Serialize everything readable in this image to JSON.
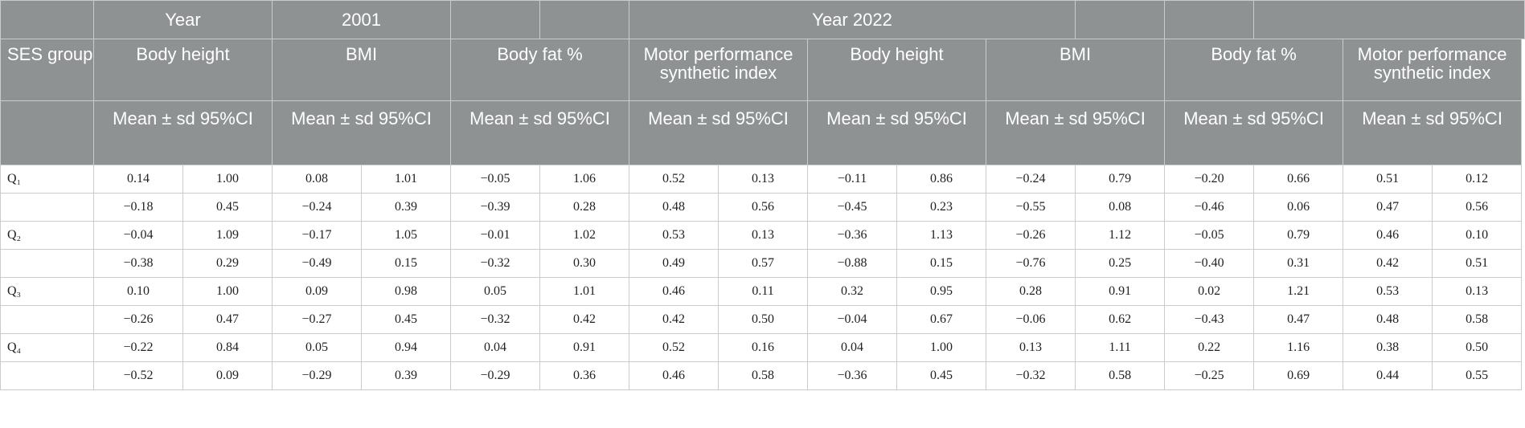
{
  "header": {
    "row1": {
      "year_label": "Year",
      "year_2001": "2001",
      "year_2022": "Year 2022"
    },
    "ses_group": "SES group",
    "measures": [
      "Body height",
      "BMI",
      "Body fat %",
      "Motor performance synthetic index",
      "Body height",
      "BMI",
      "Body fat %",
      "Motor performance synthetic index"
    ],
    "stat_label": "Mean ± sd 95%CI"
  },
  "rows": [
    {
      "group": "Q₁",
      "values": [
        "0.14",
        "1.00",
        "0.08",
        "1.01",
        "−0.05",
        "1.06",
        "0.52",
        "0.13",
        "−0.11",
        "0.86",
        "−0.24",
        "0.79",
        "−0.20",
        "0.66",
        "0.51",
        "0.12"
      ]
    },
    {
      "group": "",
      "values": [
        "−0.18",
        "0.45",
        "−0.24",
        "0.39",
        "−0.39",
        "0.28",
        "0.48",
        "0.56",
        "−0.45",
        "0.23",
        "−0.55",
        "0.08",
        "−0.46",
        "0.06",
        "0.47",
        "0.56"
      ]
    },
    {
      "group": "Q₂",
      "values": [
        "−0.04",
        "1.09",
        "−0.17",
        "1.05",
        "−0.01",
        "1.02",
        "0.53",
        "0.13",
        "−0.36",
        "1.13",
        "−0.26",
        "1.12",
        "−0.05",
        "0.79",
        "0.46",
        "0.10"
      ]
    },
    {
      "group": "",
      "values": [
        "−0.38",
        "0.29",
        "−0.49",
        "0.15",
        "−0.32",
        "0.30",
        "0.49",
        "0.57",
        "−0.88",
        "0.15",
        "−0.76",
        "0.25",
        "−0.40",
        "0.31",
        "0.42",
        "0.51"
      ]
    },
    {
      "group": "Q₃",
      "values": [
        "0.10",
        "1.00",
        "0.09",
        "0.98",
        "0.05",
        "1.01",
        "0.46",
        "0.11",
        "0.32",
        "0.95",
        "0.28",
        "0.91",
        "0.02",
        "1.21",
        "0.53",
        "0.13"
      ]
    },
    {
      "group": "",
      "values": [
        "−0.26",
        "0.47",
        "−0.27",
        "0.45",
        "−0.32",
        "0.42",
        "0.42",
        "0.50",
        "−0.04",
        "0.67",
        "−0.06",
        "0.62",
        "−0.43",
        "0.47",
        "0.48",
        "0.58"
      ]
    },
    {
      "group": "Q₄",
      "values": [
        "−0.22",
        "0.84",
        "0.05",
        "0.94",
        "0.04",
        "0.91",
        "0.52",
        "0.16",
        "0.04",
        "1.00",
        "0.13",
        "1.11",
        "0.22",
        "1.16",
        "0.38",
        "0.50"
      ]
    },
    {
      "group": "",
      "values": [
        "−0.52",
        "0.09",
        "−0.29",
        "0.39",
        "−0.29",
        "0.36",
        "0.46",
        "0.58",
        "−0.36",
        "0.45",
        "−0.32",
        "0.58",
        "−0.25",
        "0.69",
        "0.44",
        "0.55"
      ]
    }
  ]
}
